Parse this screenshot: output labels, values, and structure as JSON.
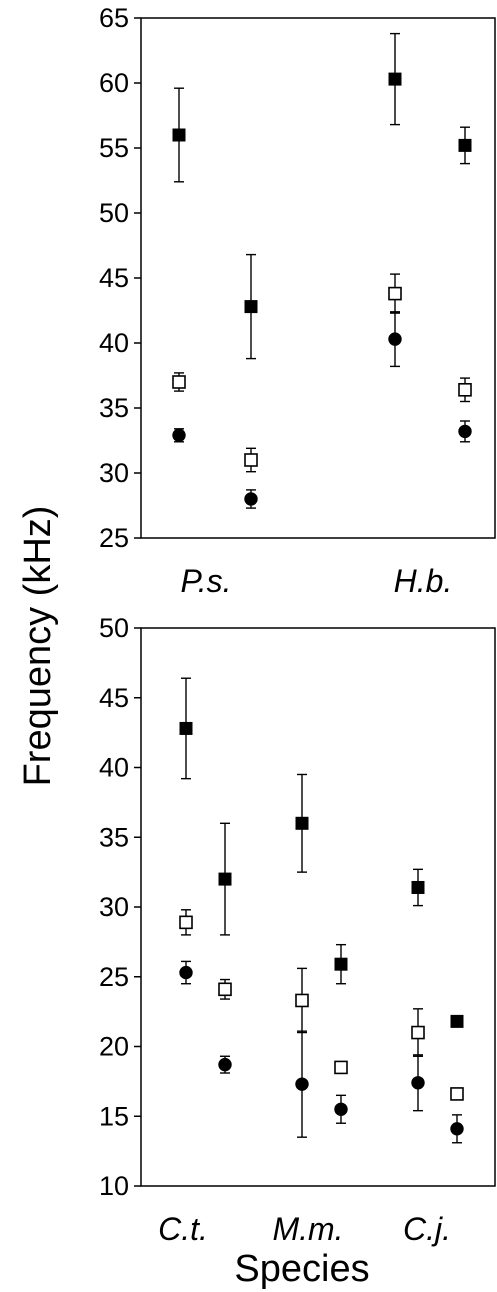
{
  "chart_data": [
    {
      "type": "scatter",
      "panel": "top",
      "ylabel": "Frequency (kHz)",
      "xlabel": "",
      "ylim": [
        25,
        65
      ],
      "yticks": [
        25,
        30,
        35,
        40,
        45,
        50,
        55,
        60,
        65
      ],
      "categories": [
        "P.s.",
        "H.b."
      ],
      "series": [
        {
          "marker": "filled-square",
          "points": [
            {
              "category": "P.s.",
              "slot": "left",
              "y": 56.0,
              "err": 3.6
            },
            {
              "category": "P.s.",
              "slot": "right",
              "y": 42.8,
              "err": 4.0
            },
            {
              "category": "H.b.",
              "slot": "left",
              "y": 60.3,
              "err": 3.5
            },
            {
              "category": "H.b.",
              "slot": "right",
              "y": 55.2,
              "err": 1.4
            }
          ]
        },
        {
          "marker": "open-square",
          "points": [
            {
              "category": "P.s.",
              "slot": "left",
              "y": 37.0,
              "err": 0.7
            },
            {
              "category": "P.s.",
              "slot": "right",
              "y": 31.0,
              "err": 0.9
            },
            {
              "category": "H.b.",
              "slot": "left",
              "y": 43.8,
              "err": 1.5
            },
            {
              "category": "H.b.",
              "slot": "right",
              "y": 36.4,
              "err": 0.9
            }
          ]
        },
        {
          "marker": "filled-circle",
          "points": [
            {
              "category": "P.s.",
              "slot": "left",
              "y": 32.9,
              "err": 0.5
            },
            {
              "category": "P.s.",
              "slot": "right",
              "y": 28.0,
              "err": 0.7
            },
            {
              "category": "H.b.",
              "slot": "left",
              "y": 40.3,
              "err": 2.1
            },
            {
              "category": "H.b.",
              "slot": "right",
              "y": 33.2,
              "err": 0.8
            }
          ]
        }
      ]
    },
    {
      "type": "scatter",
      "panel": "bottom",
      "ylabel": "Frequency (kHz)",
      "xlabel": "Species",
      "ylim": [
        10,
        50
      ],
      "yticks": [
        10,
        15,
        20,
        25,
        30,
        35,
        40,
        45,
        50
      ],
      "categories": [
        "C.t.",
        "M.m.",
        "C.j."
      ],
      "series": [
        {
          "marker": "filled-square",
          "points": [
            {
              "category": "C.t.",
              "slot": "left",
              "y": 42.8,
              "err": 3.6
            },
            {
              "category": "C.t.",
              "slot": "right",
              "y": 32.0,
              "err": 4.0
            },
            {
              "category": "M.m.",
              "slot": "left",
              "y": 36.0,
              "err": 3.5
            },
            {
              "category": "M.m.",
              "slot": "right",
              "y": 25.9,
              "err": 1.4
            },
            {
              "category": "C.j.",
              "slot": "left",
              "y": 31.4,
              "err": 1.3
            },
            {
              "category": "C.j.",
              "slot": "right",
              "y": 21.8,
              "err": 0
            }
          ]
        },
        {
          "marker": "open-square",
          "points": [
            {
              "category": "C.t.",
              "slot": "left",
              "y": 28.9,
              "err": 0.9
            },
            {
              "category": "C.t.",
              "slot": "right",
              "y": 24.1,
              "err": 0.7
            },
            {
              "category": "M.m.",
              "slot": "left",
              "y": 23.3,
              "err": 2.3
            },
            {
              "category": "M.m.",
              "slot": "right",
              "y": 18.5,
              "err": 0.3
            },
            {
              "category": "C.j.",
              "slot": "left",
              "y": 21.0,
              "err": 1.7
            },
            {
              "category": "C.j.",
              "slot": "right",
              "y": 16.6,
              "err": 0
            }
          ]
        },
        {
          "marker": "filled-circle",
          "points": [
            {
              "category": "C.t.",
              "slot": "left",
              "y": 25.3,
              "err": 0.8
            },
            {
              "category": "C.t.",
              "slot": "right",
              "y": 18.7,
              "err": 0.6
            },
            {
              "category": "M.m.",
              "slot": "left",
              "y": 17.3,
              "err": 3.8
            },
            {
              "category": "M.m.",
              "slot": "right",
              "y": 15.5,
              "err": 1.0
            },
            {
              "category": "C.j.",
              "slot": "left",
              "y": 17.4,
              "err": 2.0
            },
            {
              "category": "C.j.",
              "slot": "right",
              "y": 14.1,
              "err": 1.0
            }
          ]
        }
      ]
    }
  ]
}
